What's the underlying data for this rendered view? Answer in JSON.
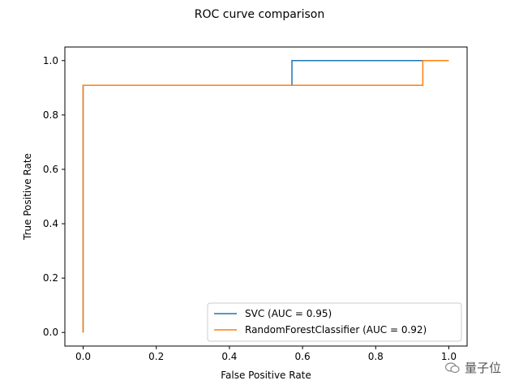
{
  "chart_data": {
    "type": "line",
    "title": "ROC curve comparison",
    "xlabel": "False Positive Rate",
    "ylabel": "True Positive Rate",
    "xlim": [
      -0.05,
      1.05
    ],
    "ylim": [
      -0.05,
      1.05
    ],
    "xticks": [
      0.0,
      0.2,
      0.4,
      0.6,
      0.8,
      1.0
    ],
    "xtick_labels": [
      "0.0",
      "0.2",
      "0.4",
      "0.6",
      "0.8",
      "1.0"
    ],
    "yticks": [
      0.0,
      0.2,
      0.4,
      0.6,
      0.8,
      1.0
    ],
    "ytick_labels": [
      "0.0",
      "0.2",
      "0.4",
      "0.6",
      "0.8",
      "1.0"
    ],
    "grid": false,
    "legend_position": "lower-right",
    "series": [
      {
        "name": "SVC (AUC = 0.95)",
        "color": "#1f77b4",
        "x": [
          0.0,
          0.0,
          0.571,
          0.571,
          0.929,
          0.929
        ],
        "y": [
          0.0,
          0.909,
          0.909,
          1.0,
          1.0,
          1.0
        ]
      },
      {
        "name": "RandomForestClassifier (AUC = 0.92)",
        "color": "#ff7f0e",
        "x": [
          0.0,
          0.0,
          0.929,
          0.929,
          1.0
        ],
        "y": [
          0.0,
          0.909,
          0.909,
          1.0,
          1.0
        ]
      }
    ]
  },
  "watermark": {
    "text": "量子位"
  }
}
